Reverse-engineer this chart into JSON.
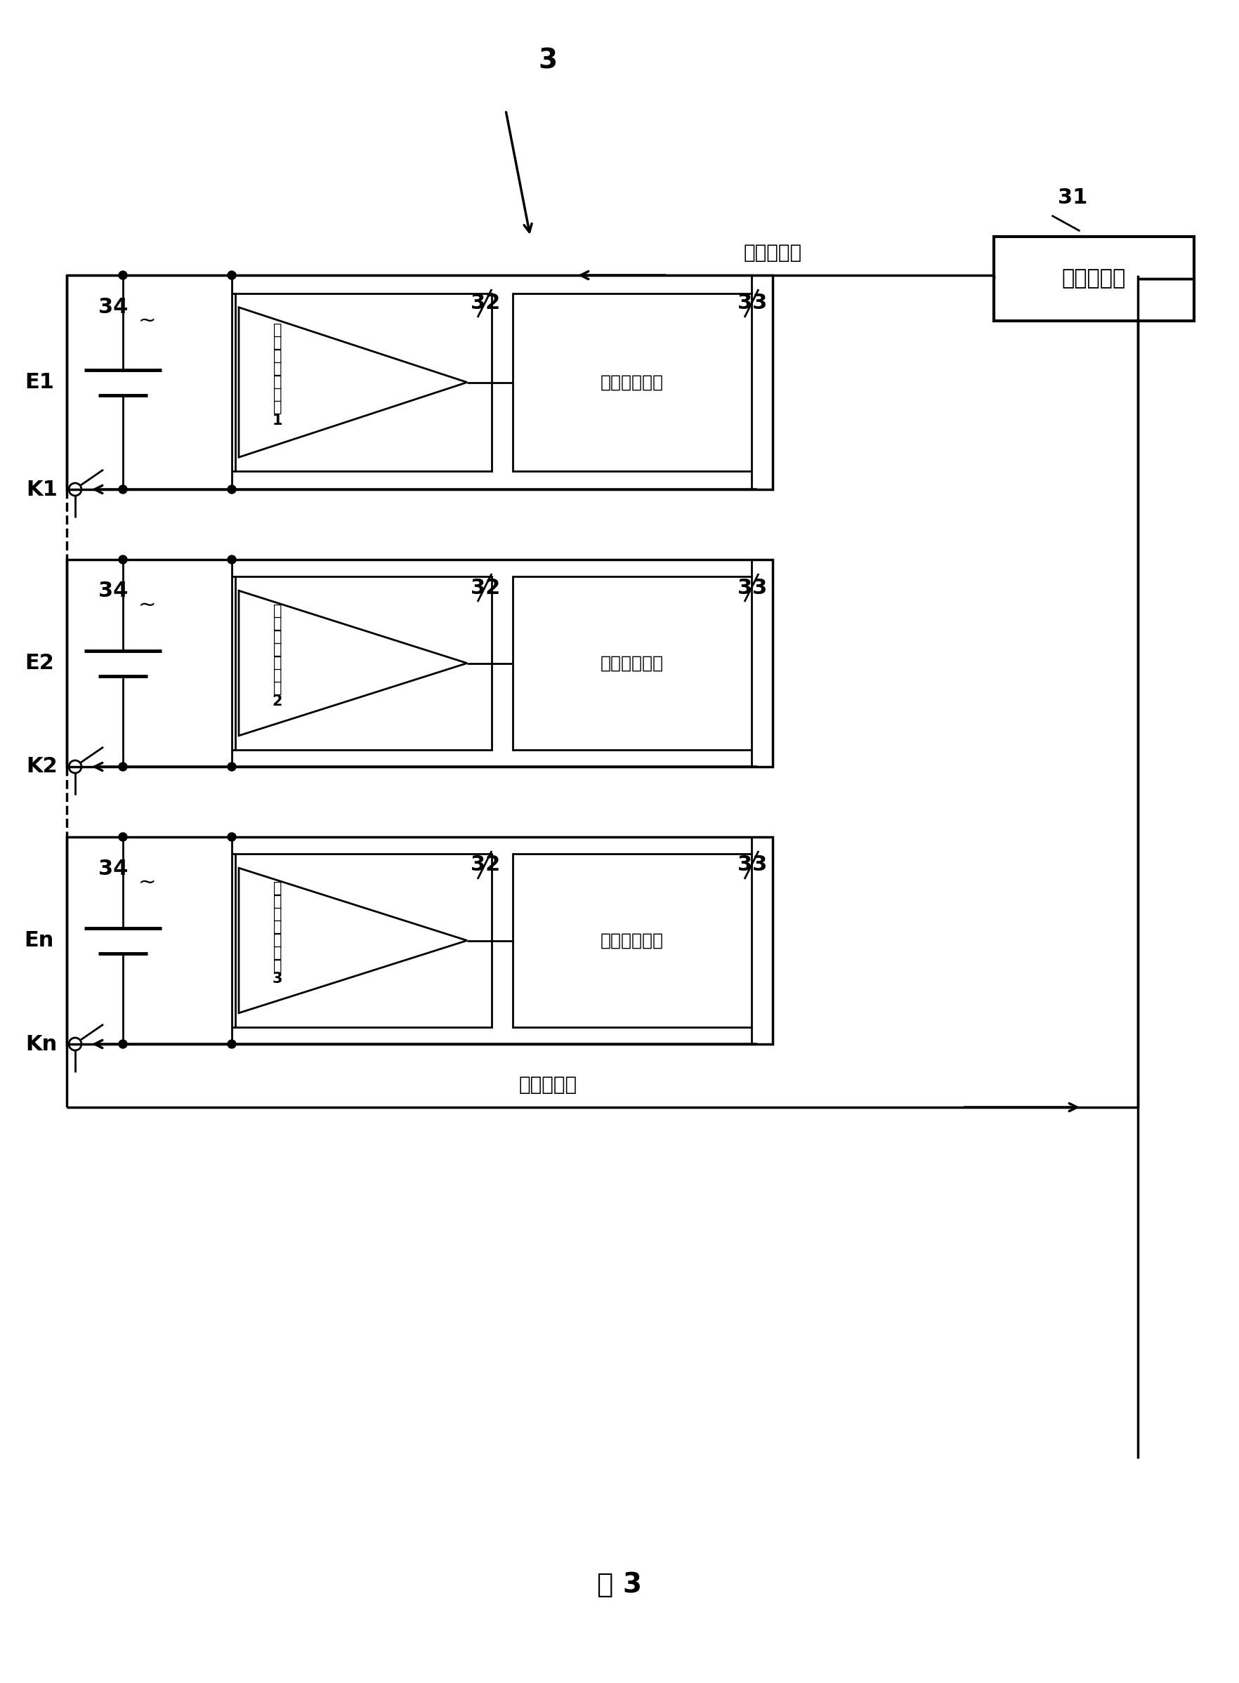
{
  "fig_width": 17.64,
  "fig_height": 23.97,
  "bg_color": "#ffffff",
  "line_color": "#000000",
  "title": "图 3",
  "label_3": "3",
  "label_31": "31",
  "label_32": "32",
  "label_33": "33",
  "label_34": "34",
  "label_e1": "E1",
  "label_e2": "E2",
  "label_en": "En",
  "label_k1": "K1",
  "label_k2": "K2",
  "label_kn": "Kn",
  "label_power_supplier": "电源供应器",
  "label_const_charge_top": "恒流充电源",
  "label_const_charge_bottom": "恒流充电源",
  "label_detector1": "精\n密\n电\n压\n检\n测\n器\n1",
  "label_detector2": "精\n密\n电\n压\n检\n测\n器\n2",
  "label_detector3": "精\n密\n电\n压\n检\n测\n器\n3",
  "label_charge_ctrl1": "充电控制电路",
  "label_charge_ctrl2": "充电控制电路",
  "label_charge_ctrl3": "充电控制电路"
}
